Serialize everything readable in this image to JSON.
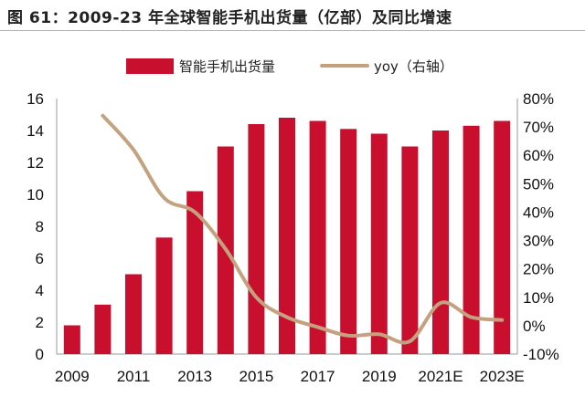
{
  "title": "图 61：2009-23 年全球智能手机出货量（亿部）及同比增速",
  "legend": {
    "bar_label": "智能手机出货量",
    "line_label": "yoy（右轴）"
  },
  "colors": {
    "bar": "#c8102e",
    "line": "#c4a27f",
    "axis": "#999999"
  },
  "chart_data": {
    "type": "bar",
    "categories": [
      "2009",
      "2010",
      "2011",
      "2012",
      "2013",
      "2014",
      "2015",
      "2016",
      "2017",
      "2018",
      "2019",
      "2020",
      "2021E",
      "2022E",
      "2023E"
    ],
    "x_tick_labels": [
      "2009",
      "2011",
      "2013",
      "2015",
      "2017",
      "2019",
      "2021E",
      "2023E"
    ],
    "series": [
      {
        "name": "智能手机出货量",
        "type": "bar",
        "axis": "left",
        "values": [
          1.8,
          3.1,
          5.0,
          7.3,
          10.2,
          13.0,
          14.4,
          14.8,
          14.6,
          14.1,
          13.8,
          13.0,
          14.0,
          14.3,
          14.6
        ]
      },
      {
        "name": "yoy（右轴）",
        "type": "line",
        "axis": "right",
        "values": [
          null,
          74,
          62,
          45,
          40,
          27,
          10,
          3,
          -0.5,
          -3.5,
          -3,
          -5.5,
          8,
          3,
          2
        ]
      }
    ],
    "y_left": {
      "min": 0,
      "max": 16,
      "ticks": [
        "0",
        "2",
        "4",
        "6",
        "8",
        "10",
        "12",
        "14",
        "16"
      ]
    },
    "y_right": {
      "min": -10,
      "max": 80,
      "ticks": [
        "-10%",
        "0%",
        "10%",
        "20%",
        "30%",
        "40%",
        "50%",
        "60%",
        "70%",
        "80%"
      ]
    },
    "legend_position": "top-center",
    "grid": false
  }
}
